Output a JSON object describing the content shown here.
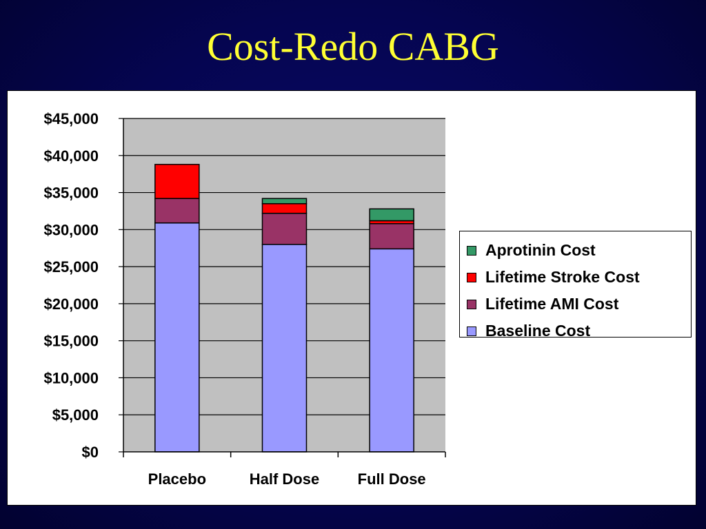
{
  "slide": {
    "title": "Cost-Redo CABG"
  },
  "colors": {
    "background": "#050550",
    "title": "#ffff33",
    "plot_area": "#c0c0c0"
  },
  "chart_data": {
    "type": "bar",
    "stacked": true,
    "title": "",
    "xlabel": "",
    "ylabel": "",
    "categories": [
      "Placebo",
      "Half Dose",
      "Full Dose"
    ],
    "ylim": [
      0,
      45000
    ],
    "ytick_step": 5000,
    "ytick_labels": [
      "$0",
      "$5,000",
      "$10,000",
      "$15,000",
      "$20,000",
      "$25,000",
      "$30,000",
      "$35,000",
      "$40,000",
      "$45,000"
    ],
    "grid": true,
    "legend_position": "right",
    "series": [
      {
        "name": "Baseline Cost",
        "color": "#9999ff",
        "values": [
          30900,
          28000,
          27400
        ]
      },
      {
        "name": "Lifetime AMI Cost",
        "color": "#993366",
        "values": [
          3300,
          4200,
          3400
        ]
      },
      {
        "name": "Lifetime Stroke Cost",
        "color": "#ff0000",
        "values": [
          4600,
          1300,
          400
        ]
      },
      {
        "name": "Aprotinin Cost",
        "color": "#339966",
        "values": [
          0,
          700,
          1600
        ]
      }
    ]
  }
}
